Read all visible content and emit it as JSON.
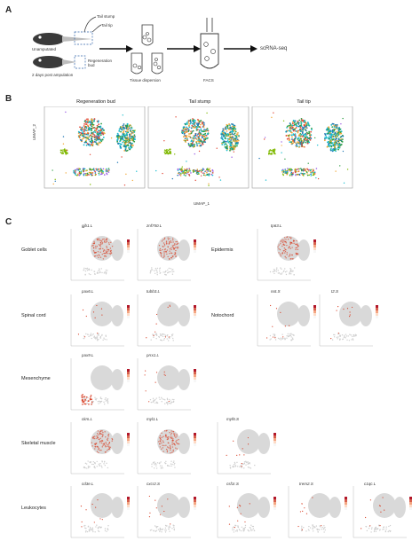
{
  "panels": {
    "a": {
      "letter": "A",
      "labels": {
        "tail_stump": "Tail stump",
        "tail_tip": "Tail tip",
        "unamputated": "Unamputated",
        "regeneration_bud": "Regeneration bud",
        "days_post": "2 days post ampulation",
        "tissue_dispersion": "Tissue dispersion",
        "facs": "FACS",
        "scrna": "scRNA-seq"
      }
    },
    "b": {
      "letter": "B",
      "titles": [
        "Regeneration bud",
        "Tail stump",
        "Tail tip"
      ],
      "xlabel": "UMAP_1",
      "ylabel": "UMAP_2",
      "xticks": [
        "-10",
        "0",
        "10"
      ],
      "yticks": [
        "10",
        "0",
        "-10"
      ]
    },
    "c": {
      "letter": "C",
      "rows": [
        {
          "celltype": "Goblet cells",
          "genes": [
            "gjb1.L",
            "znf750.L"
          ]
        },
        {
          "celltype": "Epidermis",
          "genes": [
            "tp63.L"
          ]
        },
        {
          "celltype": "Spinal cord",
          "genes": [
            "pax6.L",
            "tubb3.L"
          ]
        },
        {
          "celltype": "Notochord",
          "genes": [
            "not.S",
            "t2.S"
          ]
        },
        {
          "celltype": "Mesenchyme",
          "genes": [
            "pax9.L",
            "prrx1.L"
          ]
        },
        {
          "celltype": "Skeletal muscle",
          "genes": [
            "ckm.L",
            "myl1.L",
            "myf6.S"
          ]
        },
        {
          "celltype": "Leukocytes",
          "genes": [
            "cd3e.L",
            "cxcr2.S",
            "csf1r.S",
            "trem2.S",
            "c1qc.L"
          ]
        }
      ]
    }
  },
  "colors": {
    "expr_high": "#d9442b",
    "expr_low": "#cccccc",
    "cluster_colors": [
      "#e34b3a",
      "#2f9e44",
      "#1f77b4",
      "#f2a93b",
      "#17becf",
      "#9b5de5",
      "#7fb800"
    ]
  }
}
